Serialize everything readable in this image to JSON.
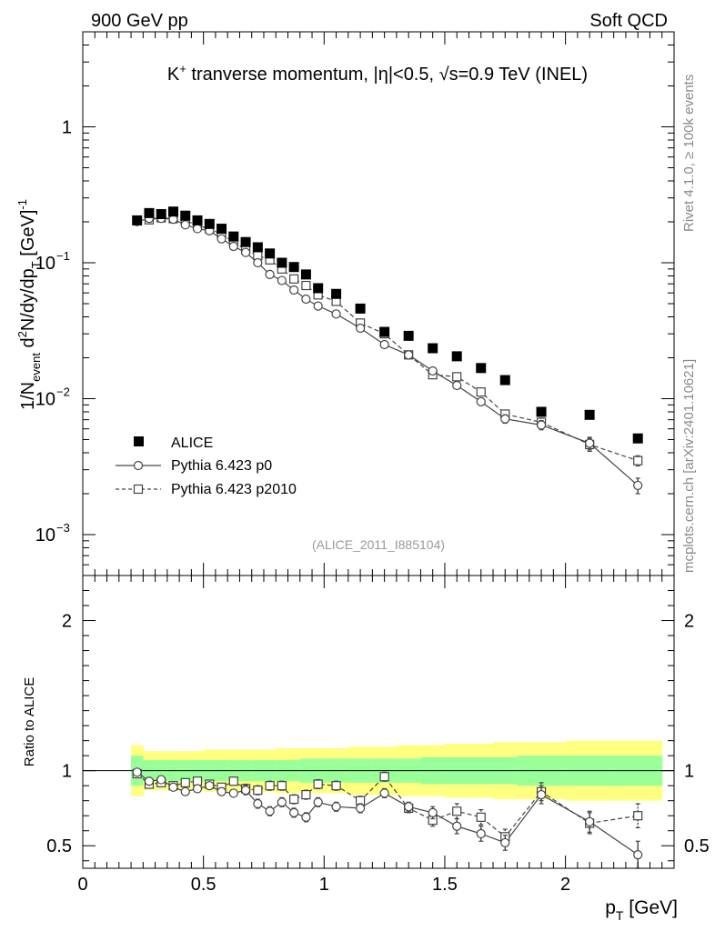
{
  "header": {
    "left": "900 GeV pp",
    "right": "Soft QCD"
  },
  "side_labels": {
    "rivet": "Rivet 4.1.0, ≥ 100k events",
    "mcplots": "mcplots.cern.ch [arXiv:2401.10621]"
  },
  "chart_data": [
    {
      "type": "scatter",
      "panel": "main",
      "title": "K⁺ tranverse momentum, |η|<0.5, √s=0.9 TeV (INEL)",
      "title_parts": {
        "particle": "K",
        "sup": "+",
        "rest": " tranverse momentum, ",
        "eta": "η",
        "eta_cut": "|<0.5, ",
        "sqrt": "√",
        "energy": "s=0.9 TeV (INEL)"
      },
      "ylabel": "1/N_event d²N/dy/dp_T [GeV]⁻¹",
      "ylabel_parts": {
        "a": "1/N",
        "a_sub": "event",
        "b": " d",
        "b_sup": "2",
        "c": "N/dy/dp",
        "c_sub": "T",
        "d": " [GeV]",
        "d_sup": "-1"
      },
      "yscale": "log",
      "ylim": [
        0.0005,
        5
      ],
      "yticks": [
        {
          "value": 0.001,
          "base": "10",
          "exp": "−3"
        },
        {
          "value": 0.01,
          "base": "10",
          "exp": "−2"
        },
        {
          "value": 0.1,
          "base": "10",
          "exp": "−1"
        },
        {
          "value": 1,
          "label": "1"
        }
      ],
      "xlim": [
        0,
        2.45
      ],
      "watermark": "(ALICE_2011_I885104)",
      "legend": {
        "position": "bottom-left",
        "entries": [
          "ALICE",
          "Pythia 6.423 p0",
          "Pythia 6.423 p2010"
        ]
      },
      "x": [
        0.225,
        0.275,
        0.325,
        0.375,
        0.425,
        0.475,
        0.525,
        0.575,
        0.625,
        0.675,
        0.725,
        0.775,
        0.825,
        0.875,
        0.925,
        0.975,
        1.05,
        1.15,
        1.25,
        1.35,
        1.45,
        1.55,
        1.65,
        1.75,
        1.9,
        2.1,
        2.3
      ],
      "series": [
        {
          "name": "ALICE",
          "marker": "filled-square",
          "values": [
            0.205,
            0.232,
            0.228,
            0.238,
            0.222,
            0.205,
            0.193,
            0.178,
            0.156,
            0.142,
            0.13,
            0.117,
            0.1,
            0.093,
            0.082,
            0.065,
            0.059,
            0.046,
            0.031,
            0.029,
            0.0235,
            0.0205,
            0.0168,
            0.0137,
            0.008,
            0.0076,
            0.0051
          ]
        },
        {
          "name": "Pythia 6.423 p0",
          "marker": "open-circle",
          "line": "solid",
          "values": [
            0.201,
            0.212,
            0.212,
            0.209,
            0.19,
            0.178,
            0.172,
            0.15,
            0.132,
            0.119,
            0.1,
            0.082,
            0.074,
            0.063,
            0.054,
            0.048,
            0.042,
            0.033,
            0.025,
            0.021,
            0.016,
            0.0125,
            0.0095,
            0.0071,
            0.0064,
            0.0047,
            0.0023
          ],
          "errors": [
            0.003,
            0.003,
            0.003,
            0.003,
            0.003,
            0.003,
            0.003,
            0.003,
            0.003,
            0.002,
            0.002,
            0.002,
            0.002,
            0.002,
            0.001,
            0.001,
            0.001,
            0.001,
            0.0007,
            0.0006,
            0.0006,
            0.0006,
            0.0006,
            0.0005,
            0.0005,
            0.0005,
            0.0003
          ]
        },
        {
          "name": "Pythia 6.423 p2010",
          "marker": "open-square",
          "line": "dashed",
          "values": [
            0.204,
            0.207,
            0.214,
            0.211,
            0.205,
            0.188,
            0.178,
            0.162,
            0.143,
            0.125,
            0.113,
            0.105,
            0.09,
            0.076,
            0.068,
            0.058,
            0.052,
            0.036,
            0.03,
            0.021,
            0.015,
            0.0145,
            0.0112,
            0.0077,
            0.0067,
            0.0046,
            0.0035
          ],
          "errors": [
            0.003,
            0.003,
            0.003,
            0.003,
            0.003,
            0.003,
            0.003,
            0.003,
            0.003,
            0.002,
            0.002,
            0.002,
            0.002,
            0.002,
            0.001,
            0.001,
            0.001,
            0.001,
            0.0007,
            0.0006,
            0.0006,
            0.0006,
            0.0006,
            0.0005,
            0.0005,
            0.0005,
            0.0003
          ]
        }
      ]
    },
    {
      "type": "scatter",
      "panel": "ratio",
      "ylabel": "Ratio to ALICE",
      "xlabel": "p_T [GeV]",
      "xlabel_parts": {
        "a": "p",
        "a_sub": "T",
        "b": " [GeV]"
      },
      "ylim": [
        0.35,
        2.3
      ],
      "yticks": [
        {
          "value": 0.5,
          "label": "0.5"
        },
        {
          "value": 1,
          "label": "1"
        },
        {
          "value": 2,
          "label": "2"
        }
      ],
      "xlim": [
        0,
        2.45
      ],
      "xticks": [
        {
          "value": 0,
          "label": "0"
        },
        {
          "value": 0.5,
          "label": "0.5"
        },
        {
          "value": 1,
          "label": "1"
        },
        {
          "value": 1.5,
          "label": "1.5"
        },
        {
          "value": 2,
          "label": "2"
        }
      ],
      "reference_line": 1.0,
      "bands": {
        "x_edges": [
          0.2,
          0.25,
          0.3,
          0.35,
          0.4,
          0.45,
          0.5,
          0.55,
          0.6,
          0.65,
          0.7,
          0.75,
          0.8,
          0.85,
          0.9,
          0.95,
          1.0,
          1.1,
          1.2,
          1.3,
          1.4,
          1.5,
          1.6,
          1.7,
          1.8,
          2.0,
          2.2,
          2.4
        ],
        "stat_sys_yellow": [
          0.17,
          0.13,
          0.13,
          0.13,
          0.13,
          0.13,
          0.14,
          0.14,
          0.14,
          0.14,
          0.14,
          0.14,
          0.15,
          0.15,
          0.15,
          0.15,
          0.15,
          0.16,
          0.16,
          0.17,
          0.17,
          0.18,
          0.18,
          0.19,
          0.19,
          0.2,
          0.2
        ],
        "stat_green": [
          0.1,
          0.07,
          0.07,
          0.07,
          0.07,
          0.07,
          0.07,
          0.07,
          0.07,
          0.07,
          0.07,
          0.07,
          0.07,
          0.07,
          0.08,
          0.08,
          0.08,
          0.08,
          0.08,
          0.08,
          0.09,
          0.09,
          0.09,
          0.09,
          0.1,
          0.1,
          0.1
        ]
      },
      "series": [
        {
          "name": "Pythia 6.423 p0",
          "marker": "open-circle",
          "line": "solid",
          "values": [
            0.99,
            0.93,
            0.94,
            0.89,
            0.86,
            0.88,
            0.9,
            0.86,
            0.85,
            0.87,
            0.78,
            0.73,
            0.79,
            0.72,
            0.69,
            0.79,
            0.76,
            0.75,
            0.85,
            0.76,
            0.72,
            0.63,
            0.58,
            0.52,
            0.84,
            0.66,
            0.44
          ],
          "errors": [
            0.02,
            0.02,
            0.02,
            0.02,
            0.02,
            0.02,
            0.02,
            0.02,
            0.02,
            0.03,
            0.03,
            0.03,
            0.03,
            0.03,
            0.03,
            0.03,
            0.03,
            0.03,
            0.03,
            0.03,
            0.04,
            0.05,
            0.05,
            0.05,
            0.06,
            0.07,
            0.09
          ]
        },
        {
          "name": "Pythia 6.423 p2010",
          "marker": "open-square",
          "line": "dashed",
          "values": [
            0.98,
            0.91,
            0.92,
            0.9,
            0.92,
            0.93,
            0.91,
            0.89,
            0.93,
            0.88,
            0.87,
            0.9,
            0.9,
            0.81,
            0.84,
            0.91,
            0.9,
            0.8,
            0.96,
            0.75,
            0.67,
            0.73,
            0.69,
            0.56,
            0.86,
            0.65,
            0.7
          ],
          "errors": [
            0.02,
            0.02,
            0.02,
            0.02,
            0.02,
            0.02,
            0.02,
            0.02,
            0.02,
            0.03,
            0.03,
            0.03,
            0.03,
            0.03,
            0.03,
            0.03,
            0.03,
            0.03,
            0.03,
            0.03,
            0.04,
            0.05,
            0.05,
            0.05,
            0.06,
            0.07,
            0.08
          ]
        }
      ]
    }
  ]
}
